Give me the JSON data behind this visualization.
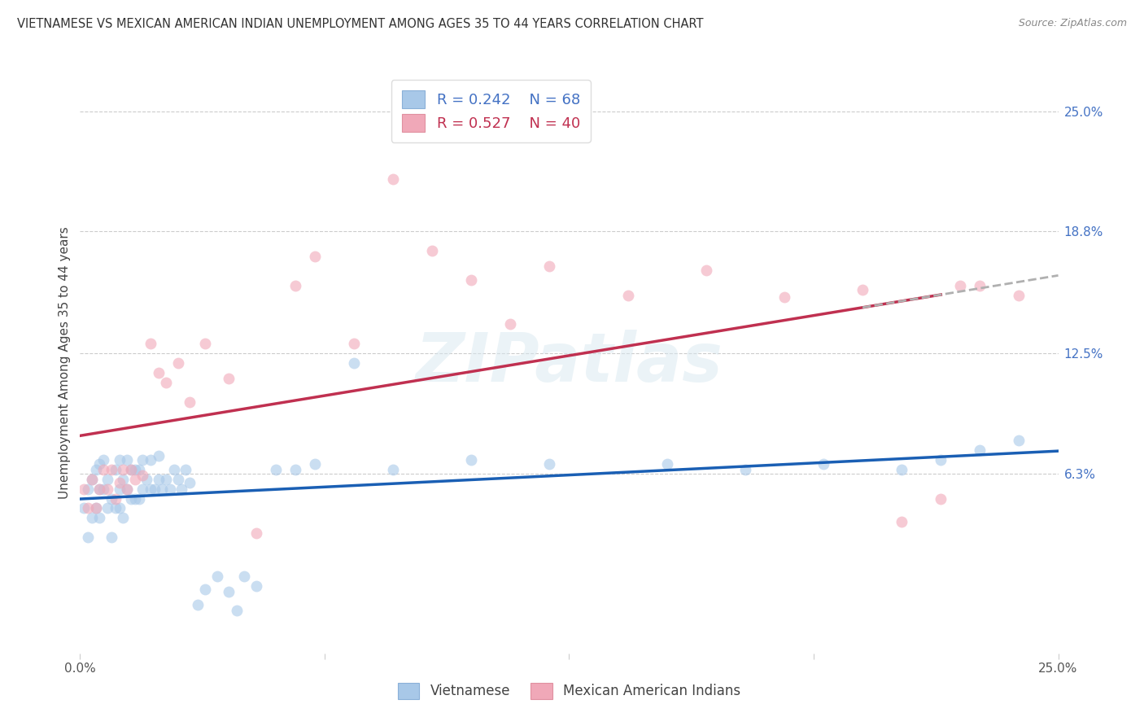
{
  "title": "VIETNAMESE VS MEXICAN AMERICAN INDIAN UNEMPLOYMENT AMONG AGES 35 TO 44 YEARS CORRELATION CHART",
  "source": "Source: ZipAtlas.com",
  "ylabel": "Unemployment Among Ages 35 to 44 years",
  "xlim": [
    0.0,
    0.25
  ],
  "ylim": [
    -0.03,
    0.27
  ],
  "xtick_positions": [
    0.0,
    0.25
  ],
  "xtick_labels": [
    "0.0%",
    "25.0%"
  ],
  "ytick_values": [
    0.063,
    0.125,
    0.188,
    0.25
  ],
  "ytick_labels": [
    "6.3%",
    "12.5%",
    "18.8%",
    "25.0%"
  ],
  "grid_color": "#cccccc",
  "background_color": "#ffffff",
  "watermark": "ZIPatlas",
  "legend_R_blue": "R = 0.242",
  "legend_N_blue": "N = 68",
  "legend_R_pink": "R = 0.527",
  "legend_N_pink": "N = 40",
  "blue_fill": "#a8c8e8",
  "pink_fill": "#f0a8b8",
  "blue_line": "#1a5fb4",
  "pink_line": "#c03050",
  "dash_color": "#b0b0b0",
  "scatter_size": 100,
  "scatter_alpha": 0.6,
  "viet_x": [
    0.001,
    0.002,
    0.002,
    0.003,
    0.003,
    0.004,
    0.004,
    0.005,
    0.005,
    0.005,
    0.006,
    0.006,
    0.007,
    0.007,
    0.008,
    0.008,
    0.009,
    0.009,
    0.01,
    0.01,
    0.01,
    0.011,
    0.011,
    0.012,
    0.012,
    0.013,
    0.013,
    0.014,
    0.014,
    0.015,
    0.015,
    0.016,
    0.016,
    0.017,
    0.018,
    0.018,
    0.019,
    0.02,
    0.02,
    0.021,
    0.022,
    0.023,
    0.024,
    0.025,
    0.026,
    0.027,
    0.028,
    0.03,
    0.032,
    0.035,
    0.038,
    0.04,
    0.042,
    0.045,
    0.05,
    0.055,
    0.06,
    0.07,
    0.08,
    0.1,
    0.12,
    0.15,
    0.17,
    0.19,
    0.21,
    0.22,
    0.23,
    0.24
  ],
  "viet_y": [
    0.045,
    0.03,
    0.055,
    0.06,
    0.04,
    0.065,
    0.045,
    0.055,
    0.068,
    0.04,
    0.055,
    0.07,
    0.045,
    0.06,
    0.03,
    0.05,
    0.065,
    0.045,
    0.055,
    0.07,
    0.045,
    0.06,
    0.04,
    0.055,
    0.07,
    0.05,
    0.065,
    0.05,
    0.065,
    0.05,
    0.065,
    0.055,
    0.07,
    0.06,
    0.055,
    0.07,
    0.055,
    0.06,
    0.072,
    0.055,
    0.06,
    0.055,
    0.065,
    0.06,
    0.055,
    0.065,
    0.058,
    -0.005,
    0.003,
    0.01,
    0.002,
    -0.008,
    0.01,
    0.005,
    0.065,
    0.065,
    0.068,
    0.12,
    0.065,
    0.07,
    0.068,
    0.068,
    0.065,
    0.068,
    0.065,
    0.07,
    0.075,
    0.08
  ],
  "mex_x": [
    0.001,
    0.002,
    0.003,
    0.004,
    0.005,
    0.006,
    0.007,
    0.008,
    0.009,
    0.01,
    0.011,
    0.012,
    0.013,
    0.014,
    0.016,
    0.018,
    0.02,
    0.022,
    0.025,
    0.028,
    0.032,
    0.038,
    0.045,
    0.055,
    0.06,
    0.07,
    0.08,
    0.09,
    0.1,
    0.11,
    0.12,
    0.14,
    0.16,
    0.18,
    0.2,
    0.21,
    0.22,
    0.225,
    0.23,
    0.24
  ],
  "mex_y": [
    0.055,
    0.045,
    0.06,
    0.045,
    0.055,
    0.065,
    0.055,
    0.065,
    0.05,
    0.058,
    0.065,
    0.055,
    0.065,
    0.06,
    0.062,
    0.13,
    0.115,
    0.11,
    0.12,
    0.1,
    0.13,
    0.112,
    0.032,
    0.16,
    0.175,
    0.13,
    0.215,
    0.178,
    0.163,
    0.14,
    0.17,
    0.155,
    0.168,
    0.154,
    0.158,
    0.038,
    0.05,
    0.16,
    0.16,
    0.155
  ]
}
